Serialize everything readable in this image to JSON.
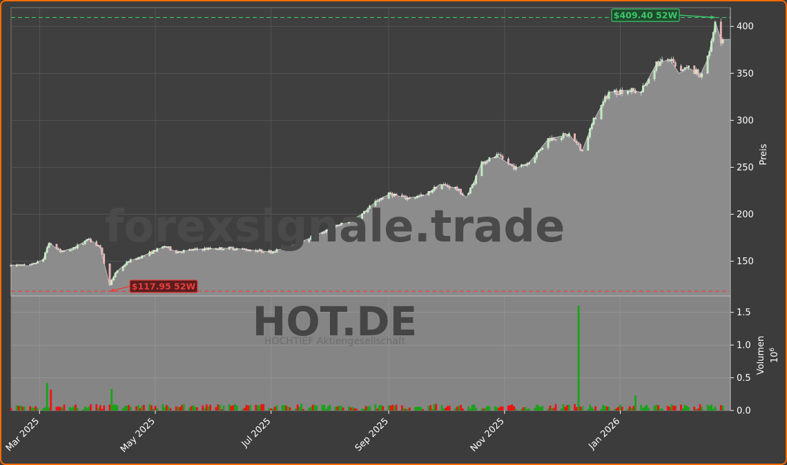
{
  "chart_data": {
    "type": "candlestick",
    "watermark": "forexsignale.trade",
    "symbol": "HOT.DE",
    "company": "HOCHTIEF Aktiengesellschaft",
    "price_axis_label": "Preis",
    "volume_axis_label": "Volumen",
    "volume_scale_label": "10",
    "volume_scale_exp": "6",
    "price_ylim": [
      113,
      420
    ],
    "price_ticks": [
      150,
      200,
      250,
      300,
      350,
      400
    ],
    "volume_ylim": [
      0,
      1.75
    ],
    "volume_ticks": [
      "0.0",
      "0.5",
      "1.0",
      "1.5"
    ],
    "x_range": [
      "2025-02-14",
      "2026-02-28"
    ],
    "x_ticks": [
      {
        "date": "2025-03-01",
        "label": "Mar 2025"
      },
      {
        "date": "2025-05-01",
        "label": "May 2025"
      },
      {
        "date": "2025-07-01",
        "label": "Jul 2025"
      },
      {
        "date": "2025-09-01",
        "label": "Sep 2025"
      },
      {
        "date": "2025-11-01",
        "label": "Nov 2025"
      },
      {
        "date": "2026-01-01",
        "label": "Jan 2026"
      }
    ],
    "high_52w": {
      "value": 409.4,
      "label": "$409.40 52W",
      "date": "2026-02-20"
    },
    "low_52w": {
      "value": 117.95,
      "label": "$117.95 52W",
      "date": "2025-04-07"
    },
    "price_path": [
      [
        "2025-02-14",
        146
      ],
      [
        "2025-02-24",
        145
      ],
      [
        "2025-03-03",
        152
      ],
      [
        "2025-03-06",
        170
      ],
      [
        "2025-03-12",
        160
      ],
      [
        "2025-03-20",
        165
      ],
      [
        "2025-03-27",
        174
      ],
      [
        "2025-04-02",
        165
      ],
      [
        "2025-04-07",
        124
      ],
      [
        "2025-04-10",
        138
      ],
      [
        "2025-04-17",
        150
      ],
      [
        "2025-04-25",
        156
      ],
      [
        "2025-05-06",
        166
      ],
      [
        "2025-05-12",
        160
      ],
      [
        "2025-05-25",
        163
      ],
      [
        "2025-06-10",
        164
      ],
      [
        "2025-06-20",
        162
      ],
      [
        "2025-07-01",
        160
      ],
      [
        "2025-07-10",
        165
      ],
      [
        "2025-07-22",
        175
      ],
      [
        "2025-08-01",
        185
      ],
      [
        "2025-08-10",
        192
      ],
      [
        "2025-08-18",
        200
      ],
      [
        "2025-08-26",
        215
      ],
      [
        "2025-09-02",
        222
      ],
      [
        "2025-09-10",
        217
      ],
      [
        "2025-09-20",
        220
      ],
      [
        "2025-09-28",
        232
      ],
      [
        "2025-10-06",
        228
      ],
      [
        "2025-10-12",
        218
      ],
      [
        "2025-10-16",
        235
      ],
      [
        "2025-10-20",
        255
      ],
      [
        "2025-10-28",
        262
      ],
      [
        "2025-11-07",
        249
      ],
      [
        "2025-11-14",
        255
      ],
      [
        "2025-11-24",
        280
      ],
      [
        "2025-12-05",
        285
      ],
      [
        "2025-12-12",
        268
      ],
      [
        "2025-12-18",
        300
      ],
      [
        "2025-12-26",
        330
      ],
      [
        "2026-01-05",
        332
      ],
      [
        "2026-01-12",
        330
      ],
      [
        "2026-01-20",
        360
      ],
      [
        "2026-01-27",
        365
      ],
      [
        "2026-02-01",
        350
      ],
      [
        "2026-02-06",
        356
      ],
      [
        "2026-02-12",
        348
      ],
      [
        "2026-02-16",
        365
      ],
      [
        "2026-02-19",
        392
      ],
      [
        "2026-02-20",
        405
      ],
      [
        "2026-02-23",
        386
      ],
      [
        "2026-02-28",
        386
      ]
    ],
    "volume_spikes": [
      {
        "date": "2025-03-05",
        "value": 0.42,
        "up": true
      },
      {
        "date": "2025-03-07",
        "value": 0.32,
        "up": false
      },
      {
        "date": "2025-04-08",
        "value": 0.33,
        "up": true
      },
      {
        "date": "2025-06-29",
        "value": 0.23,
        "up": true
      },
      {
        "date": "2025-12-10",
        "value": 1.6,
        "up": true
      },
      {
        "date": "2026-01-09",
        "value": 0.23,
        "up": true
      }
    ],
    "legend": "none",
    "grid": true
  }
}
